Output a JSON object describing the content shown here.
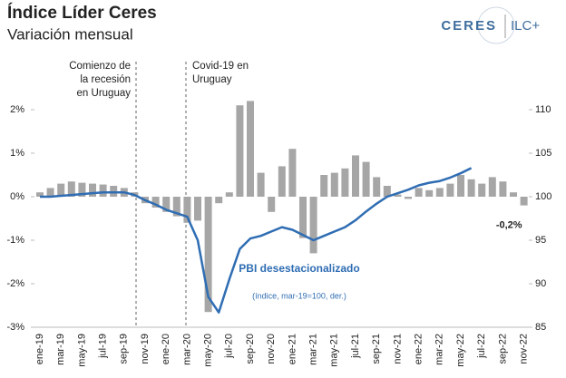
{
  "chart_data": {
    "type": "bar_line",
    "title": "Índice Líder Ceres",
    "subtitle": "Variación mensual",
    "logo": [
      "CERES",
      "ILC+"
    ],
    "categories": [
      "ene-19",
      null,
      "mar-19",
      null,
      "may-19",
      null,
      "jul-19",
      null,
      "sep-19",
      null,
      "nov-19",
      null,
      "ene-20",
      null,
      "mar-20",
      null,
      "may-20",
      null,
      "jul-20",
      null,
      "sep-20",
      null,
      "nov-20",
      null,
      "ene-21",
      null,
      "mar-21",
      null,
      "may-21",
      null,
      "jul-21",
      null,
      "sep-21",
      null,
      "nov-21",
      null,
      "ene-22",
      null,
      "mar-22",
      null,
      "may-22",
      null,
      "jul-22",
      null,
      "sep-22",
      null,
      "nov-22"
    ],
    "series": [
      {
        "name": "Índice Líder Ceres",
        "color": "#a6a6a6",
        "values": [
          0.1,
          0.2,
          0.3,
          0.35,
          0.32,
          0.3,
          0.28,
          0.25,
          0.2,
          0.1,
          -0.15,
          -0.25,
          -0.35,
          -0.45,
          -0.6,
          -0.55,
          -2.65,
          -0.15,
          0.1,
          2.1,
          2.2,
          0.55,
          -0.35,
          0.7,
          1.1,
          -0.95,
          -1.3,
          0.5,
          0.55,
          0.65,
          0.95,
          0.8,
          0.45,
          0.25,
          0.05,
          -0.05,
          0.2,
          0.15,
          0.2,
          0.3,
          0.5,
          0.4,
          0.3,
          0.45,
          0.35,
          0.1,
          -0.2
        ],
        "value_labels": [
          null,
          null,
          null,
          null,
          null,
          null,
          null,
          null,
          null,
          null,
          null,
          null,
          null,
          null,
          null,
          null,
          null,
          null,
          null,
          null,
          null,
          null,
          null,
          null,
          null,
          null,
          null,
          null,
          null,
          null,
          null,
          null,
          null,
          null,
          null,
          null,
          null,
          null,
          null,
          null,
          null,
          null,
          null,
          null,
          null,
          null,
          "-0,2%"
        ]
      },
      {
        "name": "PBI desestacionalizado",
        "note": "(índice, mar-19=100, der.)",
        "color": "#2f6db3",
        "axis": "y2",
        "values": [
          100.0,
          100.0,
          100.1,
          100.2,
          100.3,
          100.4,
          100.5,
          100.5,
          100.5,
          100.2,
          99.6,
          99.1,
          98.5,
          98.1,
          97.7,
          95.0,
          88.5,
          86.7,
          90.5,
          94.0,
          95.2,
          95.5,
          96.0,
          96.5,
          96.2,
          95.6,
          95.0,
          95.5,
          96.0,
          96.5,
          97.3,
          98.3,
          99.2,
          100.0,
          100.4,
          100.8,
          101.3,
          101.6,
          101.8,
          102.2,
          102.7,
          103.3,
          null,
          null,
          null,
          null,
          null
        ]
      }
    ],
    "annotations": [
      {
        "lines": [
          "Comienzo de",
          "la recesión",
          "en Uruguay"
        ]
      },
      {
        "lines": [
          "Covid-19 en",
          "Uruguay"
        ]
      }
    ],
    "ylim": [
      -3,
      2.5
    ],
    "yticks": [
      {
        "value": -3,
        "label": "-3%"
      },
      {
        "value": -2,
        "label": "-2%"
      },
      {
        "value": -1,
        "label": "-1%"
      },
      {
        "value": 0,
        "label": "0%"
      },
      {
        "value": 1,
        "label": "1%"
      },
      {
        "value": 2,
        "label": "2%"
      }
    ],
    "y2lim": [
      85,
      112.5
    ],
    "y2ticks": [
      85,
      90,
      95,
      100,
      105,
      110
    ]
  }
}
